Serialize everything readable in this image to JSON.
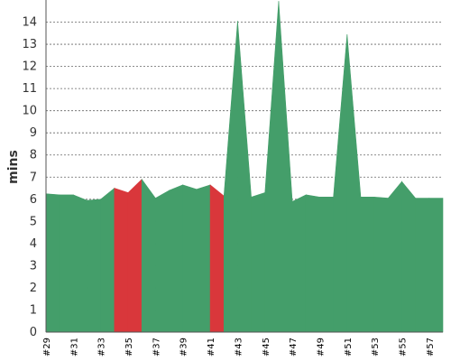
{
  "chart_data": {
    "type": "area",
    "ylabel": "mins",
    "xlabel": "",
    "title": "",
    "ylim": [
      0,
      15
    ],
    "yticks": [
      0,
      1,
      2,
      3,
      4,
      5,
      6,
      7,
      8,
      9,
      10,
      11,
      12,
      13,
      14
    ],
    "grid": true,
    "categories": [
      "#29",
      "#30",
      "#31",
      "#32",
      "#33",
      "#34",
      "#35",
      "#36",
      "#37",
      "#38",
      "#39",
      "#40",
      "#41",
      "#42",
      "#43",
      "#44",
      "#45",
      "#46",
      "#47",
      "#48",
      "#49",
      "#50",
      "#51",
      "#52",
      "#53",
      "#54",
      "#55",
      "#56",
      "#57",
      "#58"
    ],
    "x_tick_labels": [
      "#29",
      "#31",
      "#33",
      "#35",
      "#37",
      "#39",
      "#41",
      "#43",
      "#45",
      "#47",
      "#49",
      "#51",
      "#53",
      "#55",
      "#57"
    ],
    "values": [
      6.25,
      6.2,
      6.2,
      5.95,
      6.0,
      6.5,
      6.3,
      6.9,
      6.05,
      6.4,
      6.65,
      6.45,
      6.65,
      6.15,
      14.05,
      6.1,
      6.3,
      14.95,
      5.9,
      6.2,
      6.1,
      6.1,
      13.45,
      6.1,
      6.1,
      6.05,
      6.8,
      6.05,
      6.05,
      6.05
    ],
    "failed_builds": [
      "#34",
      "#35",
      "#41"
    ],
    "colors": {
      "success": "#449e6a",
      "failure": "#d9373b"
    }
  }
}
